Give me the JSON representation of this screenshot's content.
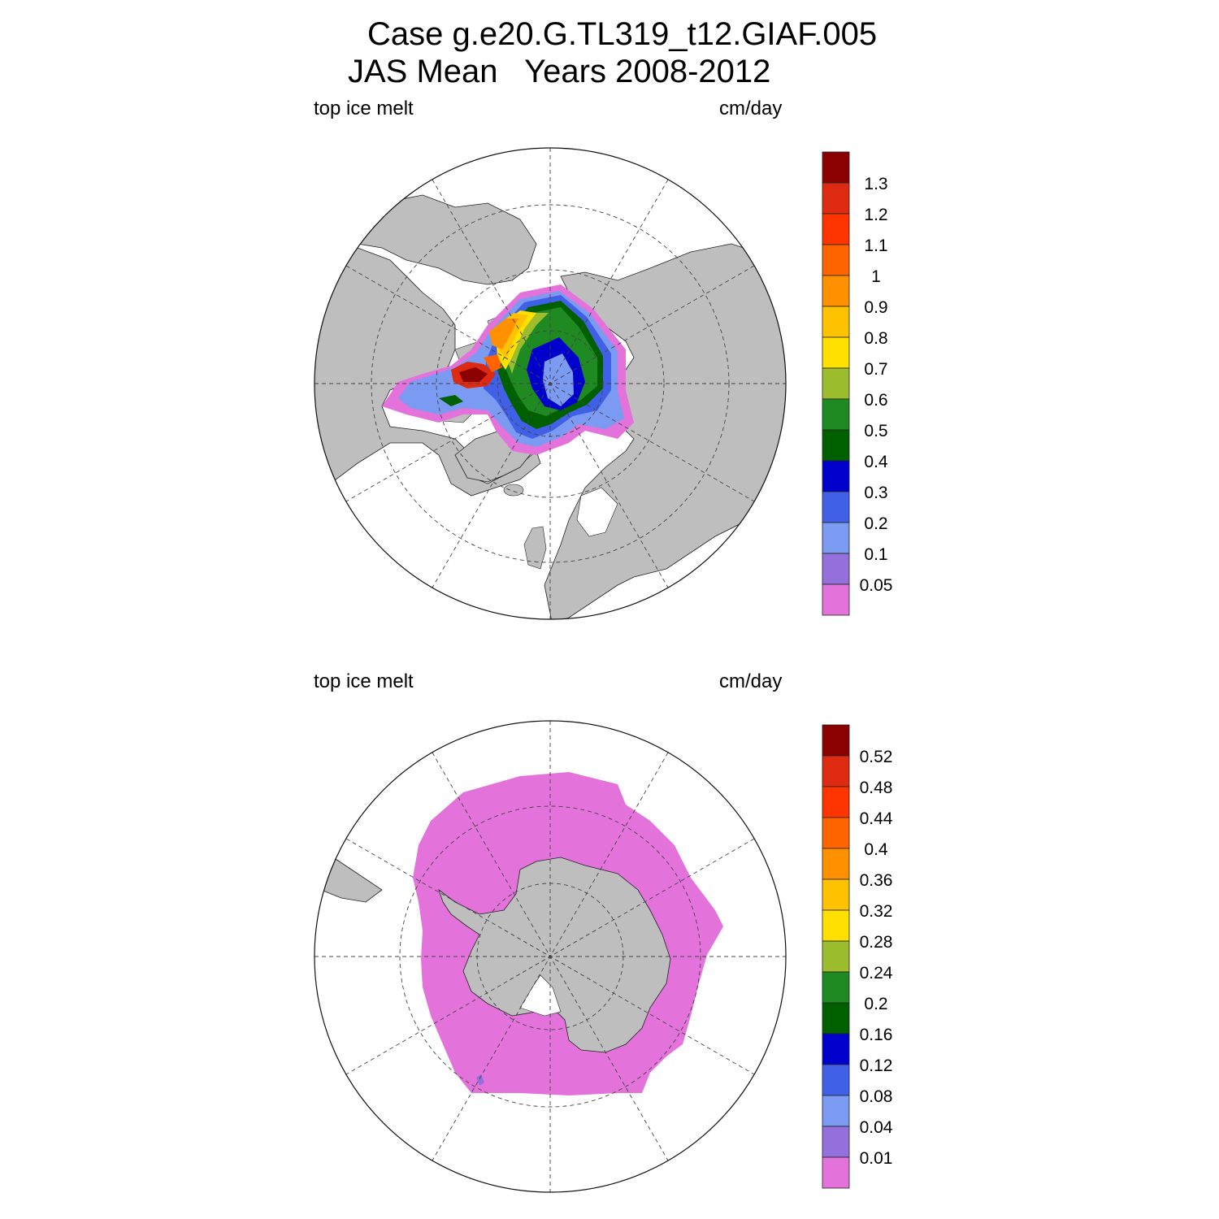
{
  "header": {
    "line1": "Case g.e20.G.TL319_t12.GIAF.005",
    "line2": "JAS Mean   Years 2008-2012"
  },
  "panels": [
    {
      "left_label": "top ice melt",
      "right_label": "cm/day",
      "hemisphere": "north",
      "colorbar": {
        "labels": [
          "1.3",
          "1.2",
          "1.1",
          "1",
          "0.9",
          "0.8",
          "0.7",
          "0.6",
          "0.5",
          "0.4",
          "0.3",
          "0.2",
          "0.1",
          "0.05"
        ],
        "colors": [
          "#8b0000",
          "#dd2a10",
          "#ff3500",
          "#ff6400",
          "#ff9000",
          "#ffc200",
          "#ffe000",
          "#9cbd2e",
          "#1f8a22",
          "#006000",
          "#0000cd",
          "#4060e8",
          "#7b9af2",
          "#9370db",
          "#e373db"
        ]
      }
    },
    {
      "left_label": "top ice melt",
      "right_label": "cm/day",
      "hemisphere": "south",
      "colorbar": {
        "labels": [
          "0.52",
          "0.48",
          "0.44",
          "0.4",
          "0.36",
          "0.32",
          "0.28",
          "0.24",
          "0.2",
          "0.16",
          "0.12",
          "0.08",
          "0.04",
          "0.01"
        ],
        "colors": [
          "#8b0000",
          "#dd2a10",
          "#ff3500",
          "#ff6400",
          "#ff9000",
          "#ffc200",
          "#ffe000",
          "#9cbd2e",
          "#1f8a22",
          "#006000",
          "#0000cd",
          "#4060e8",
          "#7b9af2",
          "#9370db",
          "#e373db"
        ]
      }
    }
  ]
}
